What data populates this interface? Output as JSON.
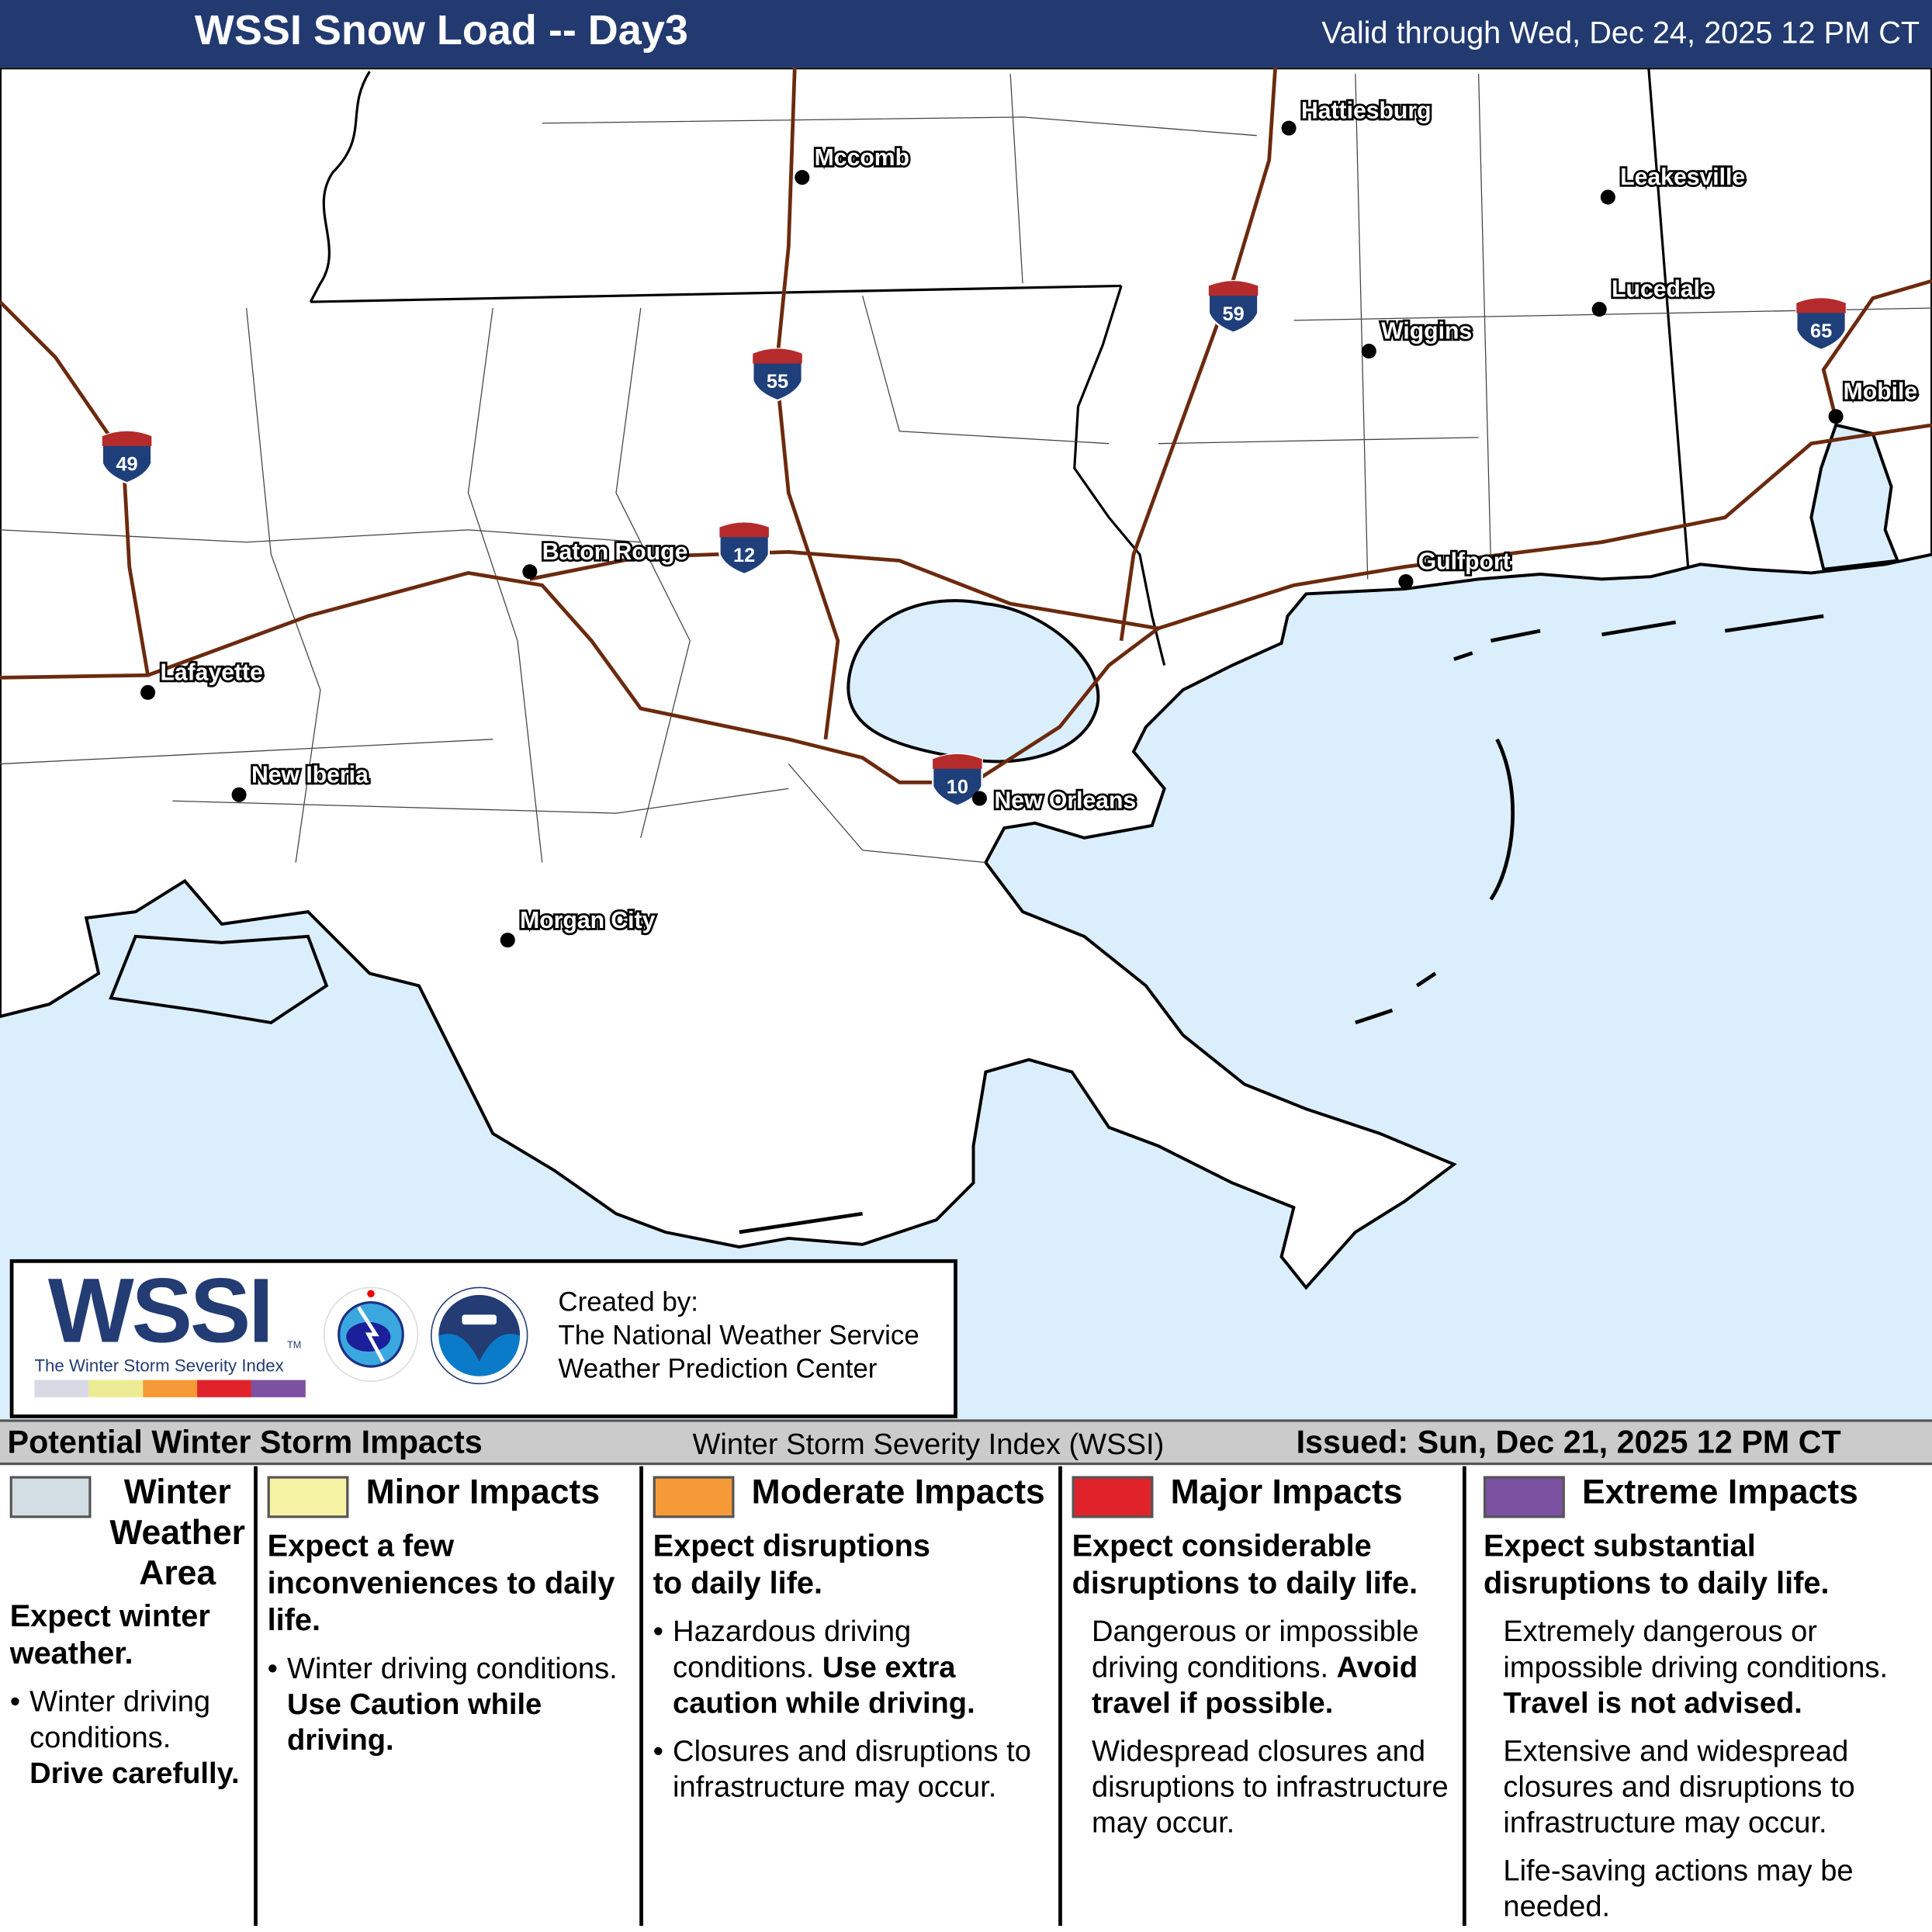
{
  "header": {
    "title": "WSSI Snow Load -- Day3",
    "valid": "Valid through Wed, Dec 24, 2025 12 PM CT"
  },
  "map": {
    "colors": {
      "water": "#dbeefc",
      "land": "#ffffff",
      "roads": "#6b2a0e",
      "shield_blue": "#1f3f7a",
      "shield_red": "#b52b2b"
    },
    "cities": [
      {
        "name": "Hattiesburg"
      },
      {
        "name": "Mccomb"
      },
      {
        "name": "Leakesville"
      },
      {
        "name": "Lucedale"
      },
      {
        "name": "Wiggins"
      },
      {
        "name": "Mobile"
      },
      {
        "name": "Baton Rouge"
      },
      {
        "name": "Gulfport"
      },
      {
        "name": "Lafayette"
      },
      {
        "name": "New Iberia"
      },
      {
        "name": "New Orleans"
      },
      {
        "name": "Morgan City"
      }
    ],
    "shields": [
      "49",
      "55",
      "59",
      "12",
      "10",
      "65"
    ]
  },
  "logo": {
    "wssi": "WSSI",
    "tm": "TM",
    "subtitle": "The Winter Storm Severity Index",
    "created_by": "Created by:",
    "org1": "The National Weather Service",
    "org2": "Weather Prediction Center",
    "scale_colors": [
      "#d9d9e6",
      "#ecec94",
      "#f59a36",
      "#e0232b",
      "#7c51a1"
    ]
  },
  "legend": {
    "title": "Potential Winter Storm Impacts",
    "center": "Winter Storm Severity Index (WSSI)",
    "issued": "Issued: Sun, Dec 21, 2025 12 PM CT",
    "columns": [
      {
        "color": "#d3dde4",
        "title": "Winter Weather Area",
        "headline": "Expect winter weather.",
        "bullet": "Winter driving conditions.",
        "bold": "Drive carefully."
      },
      {
        "color": "#f7f3a4",
        "title": "Minor Impacts",
        "headline": "Expect a few inconveniences to daily life.",
        "bullet": "Winter driving conditions.",
        "bold": "Use Caution while driving."
      },
      {
        "color": "#f59a36",
        "title": "Moderate Impacts",
        "headline": "Expect disruptions to daily life.",
        "bullet": "Hazardous driving conditions.",
        "bold": "Use extra caution while driving.",
        "bullet2": "Closures and disruptions to infrastructure may occur."
      },
      {
        "color": "#e0232b",
        "title": "Major Impacts",
        "headline": "Expect considerable disruptions to daily life.",
        "text": "Dangerous or impossible driving conditions.",
        "bold": "Avoid travel if possible.",
        "text2": "Widespread closures and disruptions to infrastructure may occur."
      },
      {
        "color": "#7c51a1",
        "title": "Extreme Impacts",
        "headline": "Expect substantial disruptions to daily life.",
        "text": "Extremely dangerous or impossible driving conditions.",
        "bold": "Travel is not advised.",
        "text2": "Extensive and widespread closures and disruptions to infrastructure may occur.",
        "text3": "Life-saving actions may be needed."
      }
    ]
  }
}
